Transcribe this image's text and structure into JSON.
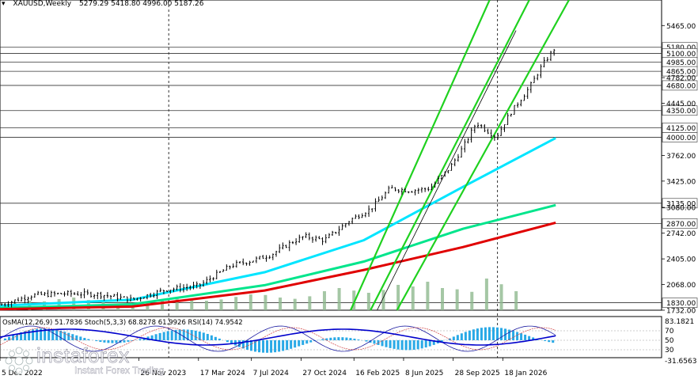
{
  "header": {
    "symbol": "XAUUSD,Weekly",
    "ohlc": "5279.29 5418.80 4996.00 5187.26"
  },
  "chart_data": {
    "type": "candlestick",
    "symbol": "XAUUSD",
    "timeframe": "Weekly",
    "ylim": [
      1732.0,
      5800.0
    ],
    "price_ticks": [
      5465.0,
      4782.0,
      4445.0,
      3762.0,
      3425.0,
      3080.0,
      2742.0,
      2405.0,
      2068.0,
      1732.0
    ],
    "levels": [
      5180.0,
      5100.0,
      4985.0,
      4865.0,
      4680.0,
      4350.0,
      4125.0,
      4000.0,
      3135.0,
      2870.0,
      1830.0
    ],
    "x_ticks": [
      "5 Dec 2022",
      "26 Nov 2023",
      "17 Mar 2024",
      "7 Jul 2024",
      "27 Oct 2024",
      "16 Feb 2025",
      "8 Jun 2025",
      "28 Sep 2025",
      "18 Jan 2026"
    ],
    "price_path": [
      [
        0,
        1800
      ],
      [
        0.05,
        1930
      ],
      [
        0.1,
        1950
      ],
      [
        0.15,
        1940
      ],
      [
        0.2,
        1870
      ],
      [
        0.25,
        2000
      ],
      [
        0.3,
        2050
      ],
      [
        0.32,
        2160
      ],
      [
        0.35,
        2320
      ],
      [
        0.38,
        2380
      ],
      [
        0.41,
        2460
      ],
      [
        0.44,
        2620
      ],
      [
        0.46,
        2700
      ],
      [
        0.49,
        2650
      ],
      [
        0.51,
        2780
      ],
      [
        0.53,
        2920
      ],
      [
        0.56,
        3060
      ],
      [
        0.59,
        3330
      ],
      [
        0.62,
        3300
      ],
      [
        0.65,
        3330
      ],
      [
        0.68,
        3600
      ],
      [
        0.7,
        3870
      ],
      [
        0.72,
        4190
      ],
      [
        0.75,
        4000
      ],
      [
        0.77,
        4300
      ],
      [
        0.8,
        4650
      ],
      [
        0.82,
        4950
      ],
      [
        0.84,
        5187
      ]
    ],
    "moving_averages": [
      {
        "color": "#00e5ff",
        "values": [
          [
            0,
            1790
          ],
          [
            0.2,
            1870
          ],
          [
            0.4,
            2230
          ],
          [
            0.55,
            2650
          ],
          [
            0.7,
            3350
          ],
          [
            0.84,
            3990
          ]
        ]
      },
      {
        "color": "#00e58c",
        "values": [
          [
            0,
            1760
          ],
          [
            0.2,
            1810
          ],
          [
            0.4,
            2060
          ],
          [
            0.55,
            2370
          ],
          [
            0.7,
            2800
          ],
          [
            0.84,
            3110
          ]
        ]
      },
      {
        "color": "#e00000",
        "values": [
          [
            0,
            1745
          ],
          [
            0.2,
            1780
          ],
          [
            0.4,
            1990
          ],
          [
            0.55,
            2260
          ],
          [
            0.7,
            2560
          ],
          [
            0.84,
            2880
          ]
        ]
      }
    ],
    "histogram": [
      0.22,
      0.3,
      0.28,
      0.35,
      0.4,
      0.32,
      0.26,
      0.2,
      0.22,
      0.28,
      0.33,
      0.38,
      0.36,
      0.3,
      0.34,
      0.42,
      0.5,
      0.48,
      0.4,
      0.36,
      0.44,
      0.6,
      0.7,
      0.62,
      0.55,
      0.64,
      0.8,
      0.75,
      0.9,
      0.7,
      0.66,
      0.58,
      1.0,
      0.82,
      0.6
    ],
    "channels": [
      {
        "color": "#1fd11f",
        "points": [
          [
            0.53,
            1732
          ],
          [
            0.74,
            5800
          ]
        ]
      },
      {
        "color": "#1fd11f",
        "points": [
          [
            0.56,
            1732
          ],
          [
            0.8,
            5800
          ]
        ]
      },
      {
        "color": "#1fd11f",
        "points": [
          [
            0.6,
            1732
          ],
          [
            0.86,
            5800
          ]
        ]
      },
      {
        "color": "#000000",
        "points": [
          [
            0.57,
            1732
          ],
          [
            0.78,
            5400
          ]
        ]
      }
    ],
    "oscillator": {
      "label": "OsMA(12,26,9) 51.7836  Stoch(5,3,3) 68.8278 61.9926  RSI(14) 74.9542",
      "scale": [
        "83.1821",
        "70",
        "50",
        "30",
        "-31.6563"
      ]
    }
  },
  "watermark": {
    "brand": "instaforex",
    "tagline": "Instant Forex Trading"
  }
}
